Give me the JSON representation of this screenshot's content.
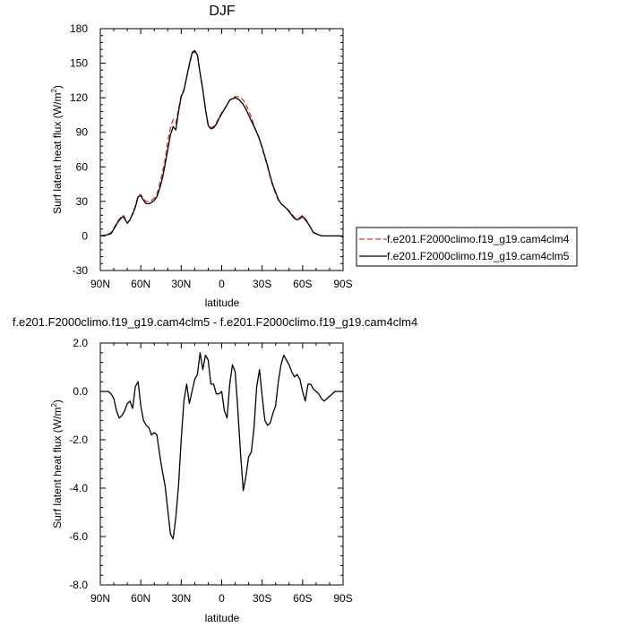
{
  "chart_data": [
    {
      "type": "line",
      "title": "DJF",
      "xlabel": "latitude",
      "ylabel": "Surf latent heat flux (W/m",
      "ylabel_sup": "2",
      "ylabel_close": ")",
      "x_direction": "90N to 90S",
      "xlim": [
        90,
        -90
      ],
      "ylim": [
        -30,
        180
      ],
      "x_ticks": [
        90,
        60,
        30,
        0,
        -30,
        -60,
        -90
      ],
      "x_tick_labels": [
        "90N",
        "60N",
        "30N",
        "0",
        "30S",
        "60S",
        "90S"
      ],
      "y_ticks": [
        -30,
        0,
        30,
        60,
        90,
        120,
        150,
        180
      ],
      "y_tick_labels": [
        "-30",
        "0",
        "30",
        "60",
        "90",
        "120",
        "150",
        "180"
      ],
      "legend_placement": "right",
      "series": [
        {
          "name": "f.e201.F2000climo.f19_g19.cam4clm4",
          "color": "#e03030",
          "style": "dashed",
          "x": [
            90,
            85,
            82,
            80,
            77,
            75,
            73,
            71,
            70,
            68,
            66,
            64,
            62,
            60,
            58,
            56,
            54,
            52,
            50,
            48,
            46,
            44,
            42,
            40,
            38,
            36,
            34,
            32,
            30,
            28,
            26,
            24,
            22,
            20,
            18,
            16,
            14,
            12,
            10,
            8,
            6,
            4,
            2,
            0,
            -2,
            -4,
            -6,
            -8,
            -10,
            -12,
            -14,
            -16,
            -18,
            -20,
            -22,
            -24,
            -26,
            -28,
            -30,
            -32,
            -34,
            -36,
            -38,
            -40,
            -42,
            -44,
            -46,
            -48,
            -50,
            -52,
            -54,
            -56,
            -58,
            -60,
            -62,
            -64,
            -66,
            -68,
            -70,
            -72,
            -74,
            -76,
            -78,
            -80,
            -82,
            -84,
            -86,
            -88,
            -90
          ],
          "y": [
            0,
            1,
            3,
            7,
            13,
            16,
            18,
            14,
            11,
            14,
            20,
            26,
            35,
            36,
            32,
            30,
            30,
            31,
            33,
            36,
            45,
            55,
            66,
            82,
            94,
            101,
            98,
            110,
            122,
            127,
            138,
            148,
            158,
            160,
            158,
            142,
            128,
            110,
            97,
            94,
            95,
            98,
            103,
            107,
            110,
            114,
            118,
            120,
            121,
            121,
            120,
            118,
            114,
            109,
            103,
            96,
            90,
            84,
            76,
            68,
            60,
            51,
            43,
            37,
            31,
            28,
            26,
            24,
            22,
            19,
            16,
            15,
            16,
            18,
            15,
            12,
            7,
            3,
            2,
            1,
            0,
            0,
            0,
            0,
            0,
            0,
            0,
            0,
            -1
          ]
        },
        {
          "name": "f.e201.F2000climo.f19_g19.cam4clm5",
          "color": "#000000",
          "style": "solid",
          "x": [
            90,
            85,
            82,
            80,
            77,
            75,
            73,
            71,
            70,
            68,
            66,
            64,
            62,
            60,
            58,
            56,
            54,
            52,
            50,
            48,
            46,
            44,
            42,
            40,
            38,
            36,
            34,
            32,
            30,
            28,
            26,
            24,
            22,
            20,
            18,
            16,
            14,
            12,
            10,
            8,
            6,
            4,
            2,
            0,
            -2,
            -4,
            -6,
            -8,
            -10,
            -12,
            -14,
            -16,
            -18,
            -20,
            -22,
            -24,
            -26,
            -28,
            -30,
            -32,
            -34,
            -36,
            -38,
            -40,
            -42,
            -44,
            -46,
            -48,
            -50,
            -52,
            -54,
            -56,
            -58,
            -60,
            -62,
            -64,
            -66,
            -68,
            -70,
            -72,
            -74,
            -76,
            -78,
            -80,
            -82,
            -84,
            -86,
            -88,
            -90
          ],
          "y": [
            0,
            1,
            2,
            6,
            12,
            15,
            17,
            13,
            11,
            14,
            19,
            25,
            34,
            35,
            31,
            28,
            28,
            29,
            31,
            34,
            41,
            50,
            62,
            75,
            88,
            95,
            92,
            108,
            121,
            126,
            138,
            149,
            159,
            161,
            157,
            141,
            127,
            110,
            96,
            93,
            94,
            97,
            102,
            106,
            110,
            114,
            118,
            119,
            120,
            119,
            117,
            114,
            110,
            105,
            100,
            95,
            90,
            84,
            77,
            69,
            61,
            52,
            44,
            38,
            32,
            28,
            26,
            24,
            21,
            18,
            15,
            14,
            15,
            17,
            14,
            11,
            7,
            3,
            2,
            1,
            0,
            0,
            0,
            0,
            0,
            0,
            0,
            0,
            -1
          ]
        }
      ]
    },
    {
      "type": "line",
      "title": "f.e201.F2000climo.f19_g19.cam4clm5 - f.e201.F2000climo.f19_g19.cam4clm4",
      "xlabel": "latitude",
      "ylabel": "Surf latent heat flux (W/m",
      "ylabel_sup": "2",
      "ylabel_close": ")",
      "x_direction": "90N to 90S",
      "xlim": [
        90,
        -90
      ],
      "ylim": [
        -8,
        2
      ],
      "x_ticks": [
        90,
        60,
        30,
        0,
        -30,
        -60,
        -90
      ],
      "x_tick_labels": [
        "90N",
        "60N",
        "30N",
        "0",
        "30S",
        "60S",
        "90S"
      ],
      "y_ticks": [
        -8,
        -6,
        -4,
        -2,
        0,
        2
      ],
      "y_tick_labels": [
        "-8.0",
        "-6.0",
        "-4.0",
        "-2.0",
        "0.0",
        "2.0"
      ],
      "series": [
        {
          "color": "#000000",
          "style": "solid",
          "x": [
            90,
            86,
            84,
            82,
            80,
            78,
            76,
            74,
            72,
            70,
            68,
            66,
            64,
            62,
            60,
            58,
            56,
            54,
            52,
            50,
            48,
            46,
            44,
            42,
            40,
            38,
            36,
            34,
            32,
            30,
            28,
            26,
            24,
            22,
            20,
            18,
            16,
            14,
            12,
            10,
            8,
            6,
            4,
            2,
            0,
            -2,
            -4,
            -6,
            -8,
            -10,
            -12,
            -14,
            -16,
            -18,
            -20,
            -22,
            -24,
            -26,
            -28,
            -30,
            -32,
            -34,
            -36,
            -38,
            -40,
            -42,
            -44,
            -46,
            -48,
            -50,
            -52,
            -54,
            -56,
            -58,
            -60,
            -62,
            -64,
            -66,
            -68,
            -70,
            -72,
            -74,
            -76,
            -78,
            -80,
            -82,
            -84,
            -86,
            -88,
            -90
          ],
          "y": [
            0,
            0,
            0,
            -0.1,
            -0.3,
            -0.8,
            -1.1,
            -1.0,
            -0.8,
            -0.5,
            -0.4,
            -0.7,
            0.2,
            0.4,
            -0.6,
            -1.2,
            -1.4,
            -1.5,
            -1.8,
            -1.7,
            -1.8,
            -2.6,
            -3.3,
            -3.9,
            -4.9,
            -5.9,
            -6.1,
            -5.2,
            -3.9,
            -2.0,
            -0.4,
            0.3,
            -0.5,
            0.0,
            0.5,
            0.7,
            1.6,
            0.9,
            1.5,
            1.3,
            0.3,
            0.3,
            -0.1,
            -0.1,
            0.0,
            -0.8,
            -1.1,
            0.3,
            1.1,
            0.8,
            -0.8,
            -2.6,
            -4.1,
            -3.5,
            -2.7,
            -2.5,
            -1.5,
            0.2,
            0.9,
            -0.2,
            -1.2,
            -1.4,
            -1.3,
            -0.9,
            -0.6,
            0.4,
            1.1,
            1.5,
            1.3,
            1.1,
            0.8,
            0.6,
            0.7,
            0.5,
            0.0,
            -0.4,
            0.3,
            0.3,
            0.1,
            0.0,
            -0.1,
            -0.3,
            -0.4,
            -0.3,
            -0.2,
            -0.1,
            0.0,
            0.0,
            0.0,
            0.0
          ]
        }
      ]
    }
  ]
}
